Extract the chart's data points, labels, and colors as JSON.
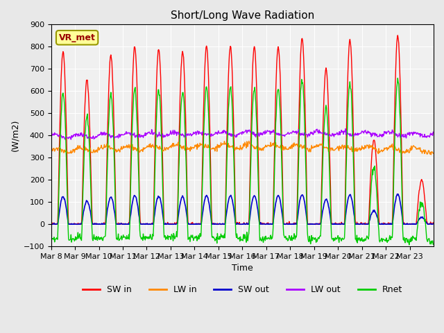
{
  "title": "Short/Long Wave Radiation",
  "xlabel": "Time",
  "ylabel": "(W/m2)",
  "ylim": [
    -100,
    900
  ],
  "annotation": "VR_met",
  "background_color": "#e8e8e8",
  "plot_bg_color": "#f0f0f0",
  "legend_entries": [
    "SW in",
    "LW in",
    "SW out",
    "LW out",
    "Rnet"
  ],
  "legend_colors": [
    "#ff0000",
    "#ff8800",
    "#0000cc",
    "#aa00ff",
    "#00cc00"
  ],
  "x_tick_labels": [
    "Mar 8",
    "Mar 9",
    "Mar 10",
    "Mar 11",
    "Mar 12",
    "Mar 13",
    "Mar 14",
    "Mar 15",
    "Mar 16",
    "Mar 17",
    "Mar 18",
    "Mar 19",
    "Mar 20",
    "Mar 21",
    "Mar 22",
    "Mar 23"
  ],
  "n_days": 16,
  "start_day": 8
}
